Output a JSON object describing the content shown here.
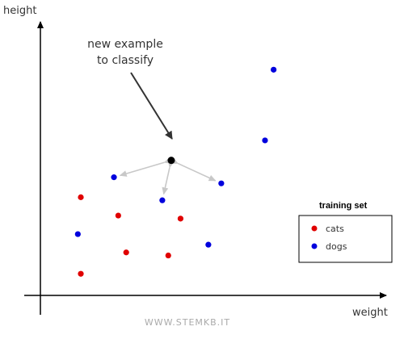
{
  "chart_data": {
    "type": "scatter",
    "title": "",
    "xlabel": "weight",
    "ylabel": "height",
    "xlim": [
      0,
      100
    ],
    "ylim": [
      0,
      100
    ],
    "grid": false,
    "legend": {
      "title": "training set",
      "placement": "bottom-right"
    },
    "series": [
      {
        "name": "cats",
        "color": "#e00000",
        "points": [
          {
            "x": 12.2,
            "y": 41.8
          },
          {
            "x": 23.5,
            "y": 34.0
          },
          {
            "x": 42.3,
            "y": 32.7
          },
          {
            "x": 25.9,
            "y": 18.3
          },
          {
            "x": 38.6,
            "y": 17.0
          },
          {
            "x": 12.2,
            "y": 9.2
          }
        ]
      },
      {
        "name": "dogs",
        "color": "#0000dd",
        "points": [
          {
            "x": 70.4,
            "y": 96.1
          },
          {
            "x": 67.8,
            "y": 66.0
          },
          {
            "x": 22.2,
            "y": 50.3
          },
          {
            "x": 54.6,
            "y": 47.7
          },
          {
            "x": 36.8,
            "y": 40.5
          },
          {
            "x": 11.3,
            "y": 26.1
          },
          {
            "x": 50.7,
            "y": 21.6
          }
        ]
      }
    ],
    "query_point": {
      "x": 39.5,
      "y": 57.5,
      "color": "#000000"
    },
    "neighbor_arrows": [
      {
        "to": {
          "x": 22.2,
          "y": 50.3
        }
      },
      {
        "to": {
          "x": 36.8,
          "y": 40.5
        }
      },
      {
        "to": {
          "x": 54.6,
          "y": 47.7
        }
      }
    ],
    "annotation": {
      "lines": [
        "new example",
        "to classify"
      ]
    }
  },
  "watermark": "WWW.STEMKB.IT"
}
